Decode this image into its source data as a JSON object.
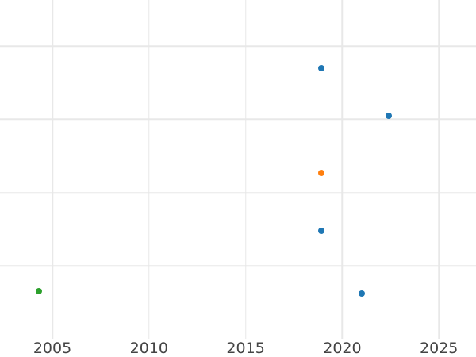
{
  "figure": {
    "background_color": "#ffffff",
    "gridline_color": "#e8e8e8",
    "tick_label_color": "#444444"
  },
  "chart_data": {
    "type": "scatter",
    "title": "",
    "xlabel": "",
    "ylabel": "",
    "legend": null,
    "grid": true,
    "x_axis": {
      "tick_labels": [
        "2005",
        "2010",
        "2015",
        "2020",
        "2025"
      ],
      "tick_values": [
        2005,
        2010,
        2015,
        2020,
        2025
      ],
      "lim": [
        2002.29,
        2026.92
      ]
    },
    "y_axis": {
      "tick_labels": [],
      "gridline_values": [
        1,
        2,
        3,
        4
      ],
      "lim": [
        0,
        4.631
      ]
    },
    "series": [
      {
        "name": "blue-series",
        "color": "#1f77b4",
        "points": [
          {
            "x": 2018.9,
            "y": 3.7
          },
          {
            "x": 2022.4,
            "y": 3.05
          },
          {
            "x": 2018.9,
            "y": 1.48
          },
          {
            "x": 2021.0,
            "y": 0.62
          }
        ]
      },
      {
        "name": "orange-series",
        "color": "#ff7f0e",
        "points": [
          {
            "x": 2018.9,
            "y": 2.27
          }
        ]
      },
      {
        "name": "green-series",
        "color": "#2ca02c",
        "points": [
          {
            "x": 2004.3,
            "y": 0.65
          }
        ]
      }
    ],
    "marker_diameter_px": 8
  }
}
